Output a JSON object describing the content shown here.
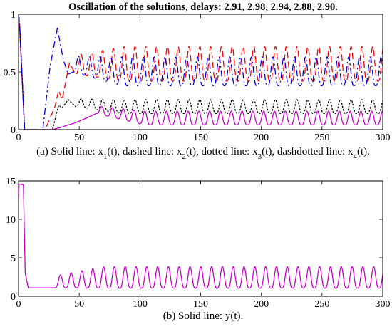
{
  "figure": {
    "title": "Oscillation of the solutions, delays: 2.91, 2.98, 2.94, 2.88, 2.90."
  },
  "chart_data": [
    {
      "type": "line",
      "caption_parts": [
        "(a) Solid line: x",
        "1",
        "(t), dashed line: x",
        "2",
        "(t), dotted line: x",
        "3",
        "(t), dashdotted line: x",
        "4",
        "(t)."
      ],
      "xlim": [
        0,
        300
      ],
      "ylim": [
        0,
        1
      ],
      "xticks": [
        0,
        50,
        100,
        150,
        200,
        250,
        300
      ],
      "yticks": [
        0,
        0.5,
        1
      ],
      "ytick_labels": [
        "0",
        "0.5",
        "1"
      ],
      "grid": false,
      "series": [
        {
          "style": "solid",
          "color": "#cc00cc",
          "x": [
            0,
            1,
            5,
            28,
            35,
            41,
            47,
            58,
            64,
            300
          ],
          "y": [
            1.0,
            0.85,
            0.0,
            0.0,
            0.02,
            0.04,
            0.06,
            0.11,
            0.14,
            0.14
          ],
          "osc_from": 64,
          "period": 8.9,
          "amp_end": 0.12,
          "min_end": 0.04
        },
        {
          "style": "dashed",
          "color": "#ff0000",
          "x": [
            0,
            1,
            5,
            22,
            30,
            33,
            36,
            42,
            47,
            300
          ],
          "y": [
            1.0,
            0.9,
            0.0,
            0.0,
            0.2,
            0.34,
            0.26,
            0.58,
            0.48,
            0.48
          ],
          "osc_from": 47,
          "period": 8.9,
          "amp_end": 0.3,
          "min_end": 0.42
        },
        {
          "style": "dotted",
          "color": "#000000",
          "x": [
            0,
            1,
            5,
            28,
            33,
            36,
            41,
            47,
            300
          ],
          "y": [
            1.0,
            0.9,
            0.0,
            0.0,
            0.21,
            0.19,
            0.26,
            0.2,
            0.2
          ],
          "osc_from": 47,
          "period": 8.9,
          "amp_end": 0.12,
          "min_end": 0.14
        },
        {
          "style": "dashdot",
          "color": "#0000ee",
          "x": [
            0,
            1,
            5,
            20,
            26,
            32,
            37,
            41,
            45,
            300
          ],
          "y": [
            1.0,
            0.9,
            0.0,
            0.0,
            0.55,
            0.88,
            0.6,
            0.48,
            0.5,
            0.5
          ],
          "osc_from": 45,
          "period": 8.9,
          "amp_end": 0.25,
          "min_end": 0.38
        }
      ]
    },
    {
      "type": "line",
      "caption": "(b) Solid line: y(t).",
      "xlim": [
        0,
        300
      ],
      "ylim": [
        0,
        15
      ],
      "xticks": [
        0,
        50,
        100,
        150,
        200,
        250,
        300
      ],
      "yticks": [
        0,
        5,
        10,
        15
      ],
      "ytick_labels": [
        "0",
        "5",
        "10",
        "15"
      ],
      "grid": false,
      "series": [
        {
          "style": "solid",
          "color": "#cc00cc",
          "x": [
            0,
            0.5,
            4,
            5.5,
            8,
            30,
            300
          ],
          "y": [
            12.5,
            14.6,
            14.5,
            3.0,
            1.1,
            1.1,
            1.1
          ],
          "osc_from": 30,
          "period": 8.9,
          "amp_end": 2.8,
          "min_end": 1.05
        }
      ]
    }
  ]
}
